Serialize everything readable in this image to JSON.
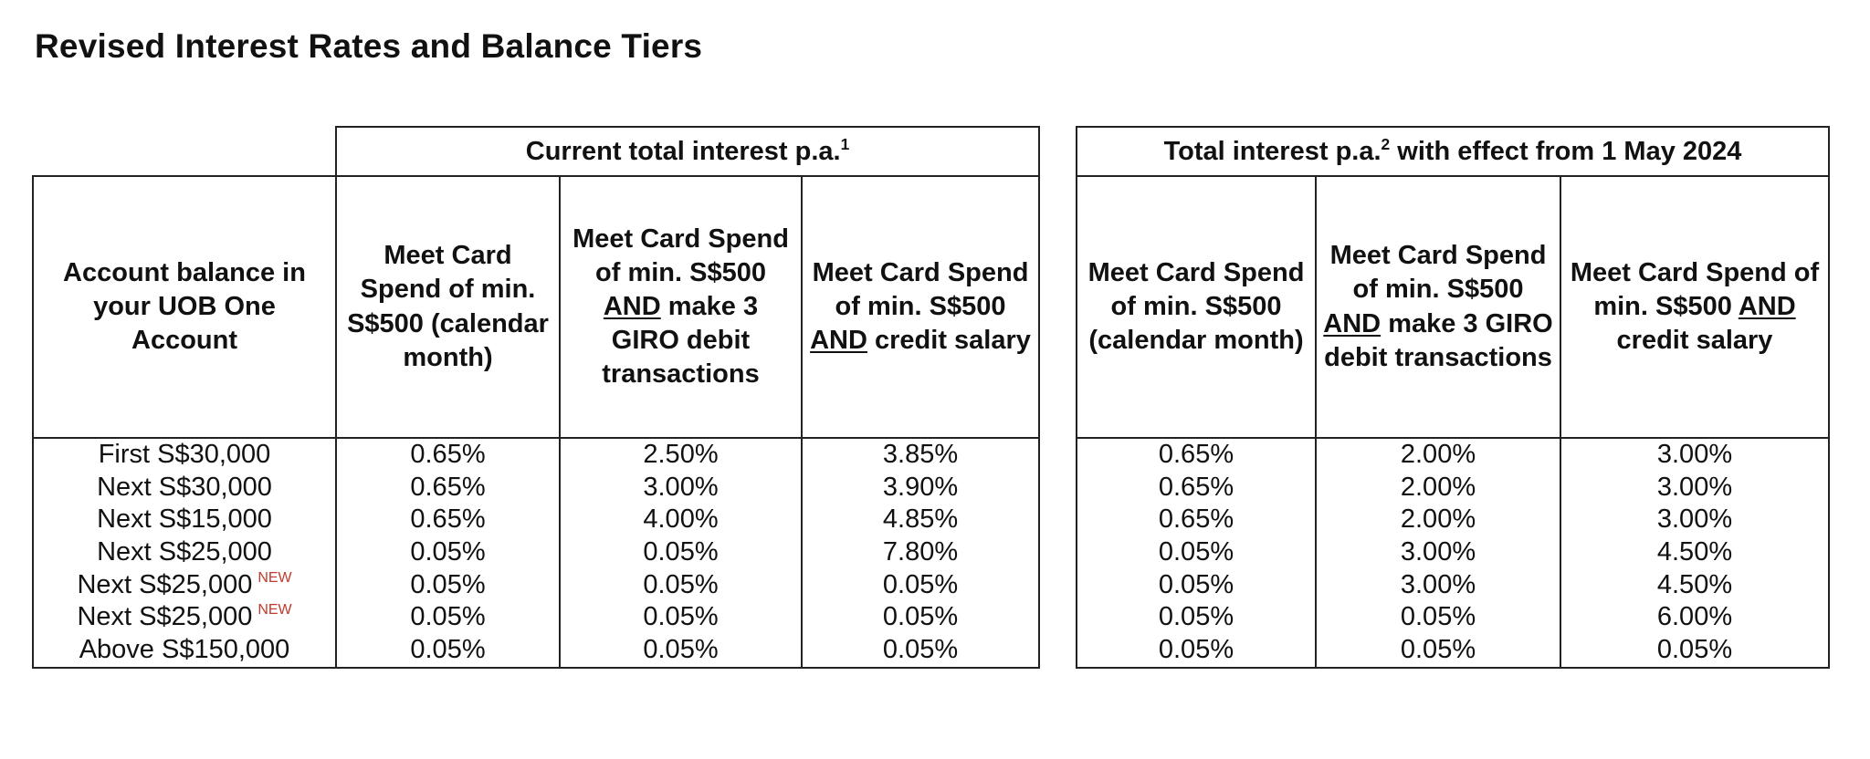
{
  "title": "Revised Interest Rates and Balance Tiers",
  "left_table": {
    "group_header": "Current total interest p.a.",
    "group_header_sup": "1",
    "row_header": "Account balance in your UOB One Account",
    "columns": [
      {
        "line1": "Meet Card Spend of min. S$500 (calendar month)",
        "underline": "",
        "rest": ""
      },
      {
        "line1": "Meet Card Spend of min. S$500",
        "underline": "AND",
        "rest": "make 3 GIRO debit transactions"
      },
      {
        "line1": "Meet Card Spend of min. S$500",
        "underline": "AND",
        "rest": "credit salary"
      }
    ]
  },
  "right_table": {
    "group_header": "Total interest p.a.",
    "group_header_sup": "2",
    "group_header_rest": "with effect from 1 May 2024",
    "columns": [
      {
        "line1": "Meet Card Spend of min. S$500 (calendar month)",
        "underline": "",
        "rest": ""
      },
      {
        "line1": "Meet Card Spend of min. S$500",
        "underline": "AND",
        "rest": "make 3 GIRO debit transactions"
      },
      {
        "line1": "Meet Card Spend of min. S$500",
        "underline": "AND",
        "rest": "credit salary"
      }
    ]
  },
  "new_tag": "NEW",
  "rows": [
    {
      "label": "First S$30,000",
      "is_new": false,
      "current": [
        "0.65%",
        "2.50%",
        "3.85%"
      ],
      "revised": [
        "0.65%",
        "2.00%",
        "3.00%"
      ]
    },
    {
      "label": "Next S$30,000",
      "is_new": false,
      "current": [
        "0.65%",
        "3.00%",
        "3.90%"
      ],
      "revised": [
        "0.65%",
        "2.00%",
        "3.00%"
      ]
    },
    {
      "label": "Next S$15,000",
      "is_new": false,
      "current": [
        "0.65%",
        "4.00%",
        "4.85%"
      ],
      "revised": [
        "0.65%",
        "2.00%",
        "3.00%"
      ]
    },
    {
      "label": "Next S$25,000",
      "is_new": false,
      "current": [
        "0.05%",
        "0.05%",
        "7.80%"
      ],
      "revised": [
        "0.05%",
        "3.00%",
        "4.50%"
      ]
    },
    {
      "label": "Next S$25,000",
      "is_new": true,
      "current": [
        "0.05%",
        "0.05%",
        "0.05%"
      ],
      "revised": [
        "0.05%",
        "3.00%",
        "4.50%"
      ]
    },
    {
      "label": "Next S$25,000",
      "is_new": true,
      "current": [
        "0.05%",
        "0.05%",
        "0.05%"
      ],
      "revised": [
        "0.05%",
        "0.05%",
        "6.00%"
      ]
    },
    {
      "label": "Above S$150,000",
      "is_new": false,
      "current": [
        "0.05%",
        "0.05%",
        "0.05%"
      ],
      "revised": [
        "0.05%",
        "0.05%",
        "0.05%"
      ]
    }
  ]
}
